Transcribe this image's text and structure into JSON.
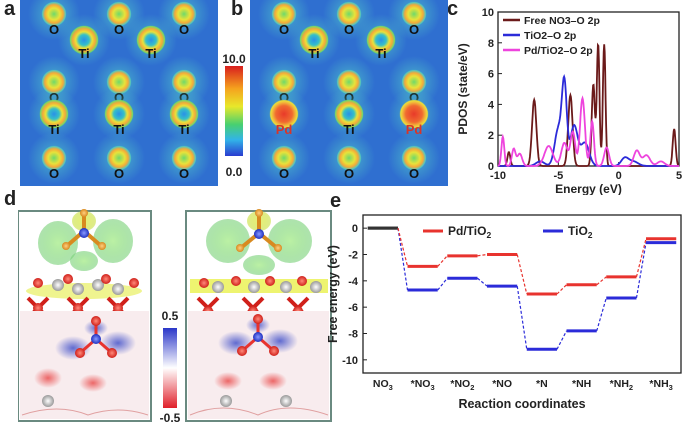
{
  "panels": {
    "a": "a",
    "b": "b",
    "c": "c",
    "d": "d",
    "e": "e"
  },
  "density_maps": {
    "colorbar": {
      "max": "10.0",
      "min": "0.0"
    },
    "map_a_atoms": [
      {
        "el": "O",
        "row": 0,
        "col": 0
      },
      {
        "el": "O",
        "row": 0,
        "col": 1
      },
      {
        "el": "O",
        "row": 0,
        "col": 2
      },
      {
        "el": "Ti",
        "row": 1,
        "col": 0
      },
      {
        "el": "Ti",
        "row": 1,
        "col": 1
      },
      {
        "el": "O",
        "row": 2,
        "col": 0
      },
      {
        "el": "O",
        "row": 2,
        "col": 1
      },
      {
        "el": "O",
        "row": 2,
        "col": 2
      },
      {
        "el": "Ti",
        "row": 3,
        "col": 0
      },
      {
        "el": "Ti",
        "row": 3,
        "col": 1
      },
      {
        "el": "Ti",
        "row": 3,
        "col": 2
      },
      {
        "el": "O",
        "row": 4,
        "col": 0
      },
      {
        "el": "O",
        "row": 4,
        "col": 1
      },
      {
        "el": "O",
        "row": 4,
        "col": 2
      }
    ],
    "map_b_atoms": [
      {
        "el": "O",
        "row": 0,
        "col": 0
      },
      {
        "el": "O",
        "row": 0,
        "col": 1
      },
      {
        "el": "O",
        "row": 0,
        "col": 2
      },
      {
        "el": "Ti",
        "row": 1,
        "col": 0
      },
      {
        "el": "Ti",
        "row": 1,
        "col": 1
      },
      {
        "el": "O",
        "row": 2,
        "col": 0
      },
      {
        "el": "O",
        "row": 2,
        "col": 1
      },
      {
        "el": "O",
        "row": 2,
        "col": 2
      },
      {
        "el": "Pd",
        "row": 3,
        "col": 0
      },
      {
        "el": "Ti",
        "row": 3,
        "col": 1
      },
      {
        "el": "Pd",
        "row": 3,
        "col": 2
      },
      {
        "el": "O",
        "row": 4,
        "col": 0
      },
      {
        "el": "O",
        "row": 4,
        "col": 1
      },
      {
        "el": "O",
        "row": 4,
        "col": 2
      }
    ]
  },
  "diff_colorbar": {
    "max": "0.5",
    "min": "-0.5"
  },
  "colors": {
    "pd_series": "#e8332e",
    "ti_series": "#2b2bd9",
    "free_no3": "#6b1a1a",
    "tio2_o": "#2b2bd9",
    "pd_tio2_o": "#ee44dd"
  },
  "chart_data": [
    {
      "type": "line",
      "title": "",
      "xlabel": "Energy (eV)",
      "ylabel": "PDOS (state/eV)",
      "xlim": [
        -10,
        5
      ],
      "ylim": [
        0,
        10
      ],
      "xticks": [
        "-10",
        "-5",
        "0",
        "5"
      ],
      "yticks": [
        "0",
        "2",
        "4",
        "6",
        "8",
        "10"
      ],
      "legend": [
        "Free NO3–O 2p",
        "TiO2–O 2p",
        "Pd/TiO2–O 2p"
      ],
      "series": [
        {
          "name": "Free NO3–O 2p",
          "peaks": [
            [
              -9.1,
              0.9,
              0.12
            ],
            [
              -7.0,
              4.3,
              0.18
            ],
            [
              -4.0,
              4.6,
              0.18
            ],
            [
              -2.1,
              5.3,
              0.13
            ],
            [
              -1.7,
              7.9,
              0.11
            ],
            [
              -1.2,
              7.9,
              0.11
            ],
            [
              4.6,
              2.4,
              0.12
            ]
          ]
        },
        {
          "name": "TiO2–O 2p",
          "peaks": [
            [
              -6.5,
              0.3,
              0.35
            ],
            [
              -5.0,
              2.4,
              0.3
            ],
            [
              -4.5,
              5.1,
              0.2
            ],
            [
              -3.7,
              2.6,
              0.3
            ],
            [
              -2.8,
              1.5,
              0.35
            ],
            [
              0.5,
              0.5,
              0.3
            ],
            [
              1.2,
              0.3,
              0.4
            ]
          ]
        },
        {
          "name": "Pd/TiO2–O 2p",
          "peaks": [
            [
              -9.6,
              1.9,
              0.12
            ],
            [
              -8.7,
              1.1,
              0.15
            ],
            [
              -8.2,
              0.8,
              0.2
            ],
            [
              -5.8,
              1.3,
              0.35
            ],
            [
              -4.5,
              1.5,
              0.25
            ],
            [
              -3.8,
              2.2,
              0.2
            ],
            [
              -3.0,
              4.4,
              0.2
            ],
            [
              -2.2,
              2.9,
              0.15
            ],
            [
              -1.0,
              1.2,
              0.2
            ],
            [
              1.5,
              1.0,
              0.25
            ],
            [
              2.3,
              0.7,
              0.3
            ],
            [
              3.5,
              0.3,
              0.3
            ]
          ]
        }
      ]
    },
    {
      "type": "line",
      "title": "",
      "xlabel": "Reaction coordinates",
      "ylabel": "Free energy (eV)",
      "ylim": [
        -11,
        1
      ],
      "yticks": [
        "0",
        "-2",
        "-4",
        "-6",
        "-8",
        "-10"
      ],
      "categories": [
        "NO3",
        "*NO3",
        "*NO2",
        "*NO",
        "*N",
        "*NH",
        "*NH2",
        "*NH3"
      ],
      "category_labels": [
        {
          "main": "NO",
          "sub": "3"
        },
        {
          "main": "*NO",
          "sub": "3"
        },
        {
          "main": "*NO",
          "sub": "2"
        },
        {
          "main": "*NO",
          "sub": ""
        },
        {
          "main": "*N",
          "sub": ""
        },
        {
          "main": "*NH",
          "sub": ""
        },
        {
          "main": "*NH",
          "sub": "2"
        },
        {
          "main": "*NH",
          "sub": "3"
        }
      ],
      "series": [
        {
          "name": "Pd/TiO2",
          "legend_main": "Pd/TiO",
          "legend_sub": "2",
          "values": [
            0,
            -2.9,
            -2.1,
            -2.0,
            -5.0,
            -4.3,
            -3.7,
            -0.8
          ]
        },
        {
          "name": "TiO2",
          "legend_main": "TiO",
          "legend_sub": "2",
          "values": [
            0,
            -4.7,
            -3.8,
            -4.4,
            -9.2,
            -7.8,
            -5.3,
            -1.1
          ]
        }
      ]
    }
  ]
}
